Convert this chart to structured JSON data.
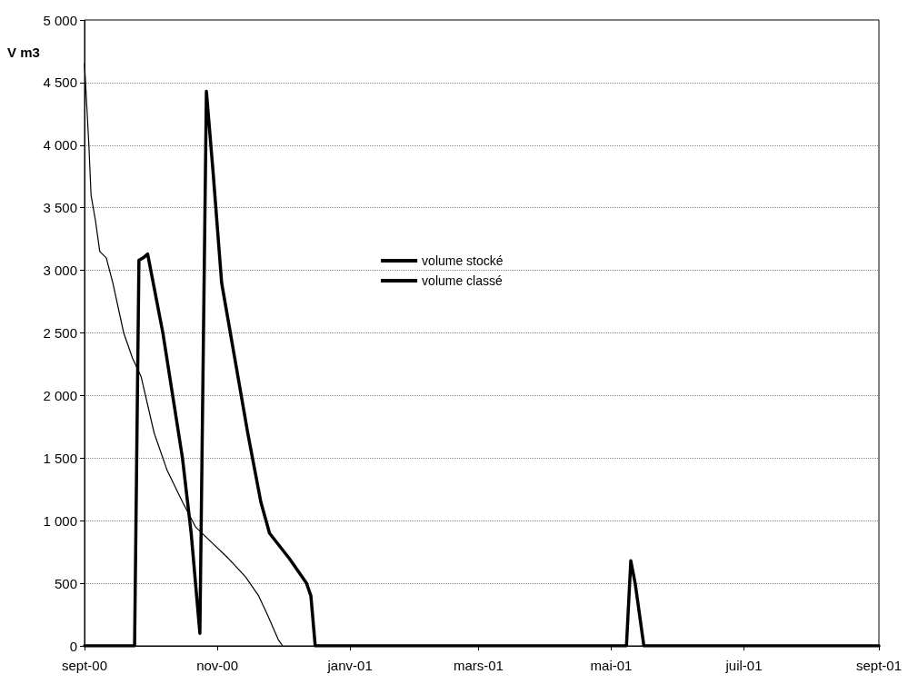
{
  "chart_data": {
    "type": "line",
    "ylabel": "V m3",
    "xlim": [
      "2000-09-01",
      "2001-09-01"
    ],
    "xticks": [
      {
        "value": "2000-09-01",
        "label": "sept-00"
      },
      {
        "value": "2000-11-01",
        "label": "nov-00"
      },
      {
        "value": "2001-01-01",
        "label": "janv-01"
      },
      {
        "value": "2001-03-01",
        "label": "mars-01"
      },
      {
        "value": "2001-05-01",
        "label": "mai-01"
      },
      {
        "value": "2001-07-01",
        "label": "juil-01"
      },
      {
        "value": "2001-09-01",
        "label": "sept-01"
      }
    ],
    "ylim": [
      0,
      5000
    ],
    "yticks": [
      0,
      500,
      {
        "value": 1000,
        "label": "1 000"
      },
      {
        "value": 1500,
        "label": "1 500"
      },
      {
        "value": 2000,
        "label": "2 000"
      },
      {
        "value": 2500,
        "label": "2 500"
      },
      {
        "value": 3000,
        "label": "3 000"
      },
      {
        "value": 3500,
        "label": "3 500"
      },
      {
        "value": 4000,
        "label": "4 000"
      },
      {
        "value": 4500,
        "label": "4 500"
      },
      {
        "value": 5000,
        "label": "5 000"
      }
    ],
    "grid": "y",
    "legend": "center",
    "marker": "none",
    "line_style": "solid",
    "series": [
      {
        "name": "volume stocké",
        "color": "#000000",
        "x": [
          "2000-09-01",
          "2000-09-24",
          "2000-09-26",
          "2000-09-28",
          "2000-09-30",
          "2000-10-07",
          "2000-10-16",
          "2000-10-20",
          "2000-10-24",
          "2000-10-27",
          "2000-10-30",
          "2000-11-03",
          "2000-11-09",
          "2000-11-15",
          "2000-11-21",
          "2000-11-25",
          "2000-12-04",
          "2000-12-12",
          "2000-12-14",
          "2000-12-16",
          "2001-05-08",
          "2001-05-10",
          "2001-05-12",
          "2001-05-16",
          "2001-09-01"
        ],
        "values": [
          0,
          0,
          3080,
          3100,
          3130,
          2500,
          1500,
          900,
          100,
          4430,
          3800,
          2900,
          2300,
          1700,
          1150,
          900,
          700,
          500,
          400,
          0,
          0,
          680,
          500,
          0,
          0
        ]
      },
      {
        "name": "volume classé",
        "color": "#000000",
        "x": [
          "2000-09-01",
          "2000-09-03",
          "2000-09-04",
          "2000-09-06",
          "2000-09-08",
          "2000-09-11",
          "2000-09-14",
          "2000-09-19",
          "2000-09-23",
          "2000-09-27",
          "2000-10-03",
          "2000-10-09",
          "2000-10-16",
          "2000-10-22",
          "2000-10-28",
          "2000-11-06",
          "2000-11-14",
          "2000-11-20",
          "2000-11-24",
          "2000-11-29",
          "2000-12-01"
        ],
        "values": [
          4650,
          4000,
          3600,
          3400,
          3150,
          3100,
          2900,
          2500,
          2300,
          2150,
          1700,
          1400,
          1150,
          950,
          850,
          700,
          550,
          400,
          250,
          50,
          0
        ]
      }
    ]
  }
}
